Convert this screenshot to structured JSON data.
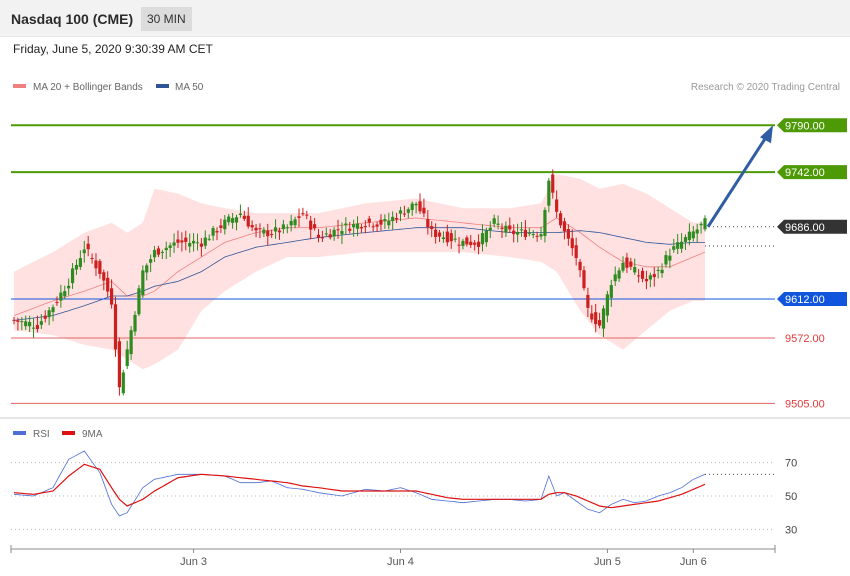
{
  "header": {
    "title": "Nasdaq 100 (CME)",
    "timeframe": "30 MIN"
  },
  "timestamp": "Friday, June 5, 2020 9:30:39 AM CET",
  "legend": {
    "items": [
      {
        "label": "MA 20 + Bollinger Bands",
        "color": "#f08080"
      },
      {
        "label": "MA 50",
        "color": "#2f5597"
      }
    ],
    "credit": "Research © 2020 Trading Central"
  },
  "colors": {
    "up": "#2e8b20",
    "down": "#cc1f1f",
    "bb_fill": "#ffdcdc",
    "ma20": "#f08080",
    "ma50": "#2f5597",
    "resistance": "#4e9a06",
    "pivot": "#1155dd",
    "support": "#e06666",
    "current": "#333333"
  },
  "chart_data": [
    {
      "type": "candlestick",
      "title": "Nasdaq 100 (CME)",
      "ylim": [
        9490,
        9820
      ],
      "levels": [
        {
          "value": 9790.0,
          "label": "9790.00",
          "kind": "resistance"
        },
        {
          "value": 9742.0,
          "label": "9742.00",
          "kind": "resistance"
        },
        {
          "value": 9686.0,
          "label": "9686.00",
          "kind": "current"
        },
        {
          "value": 9612.0,
          "label": "9612.00",
          "kind": "pivot"
        },
        {
          "value": 9572.0,
          "label": "9572.00",
          "kind": "support"
        },
        {
          "value": 9505.0,
          "label": "9505.00",
          "kind": "support"
        }
      ],
      "arrow": {
        "from": 9686,
        "to": 9790,
        "direction": "up"
      },
      "x_ticks": [
        "Jun 3",
        "Jun 4",
        "Jun 5",
        "Jun 6"
      ],
      "close_path": [
        [
          0,
          9590
        ],
        [
          6,
          9585
        ],
        [
          10,
          9605
        ],
        [
          14,
          9630
        ],
        [
          18,
          9665
        ],
        [
          22,
          9640
        ],
        [
          25,
          9610
        ],
        [
          27,
          9520
        ],
        [
          29,
          9560
        ],
        [
          33,
          9640
        ],
        [
          36,
          9660
        ],
        [
          42,
          9670
        ],
        [
          48,
          9670
        ],
        [
          54,
          9690
        ],
        [
          58,
          9700
        ],
        [
          62,
          9680
        ],
        [
          66,
          9680
        ],
        [
          70,
          9685
        ],
        [
          74,
          9700
        ],
        [
          78,
          9675
        ],
        [
          84,
          9685
        ],
        [
          90,
          9690
        ],
        [
          95,
          9690
        ],
        [
          99,
          9700
        ],
        [
          103,
          9710
        ],
        [
          107,
          9680
        ],
        [
          111,
          9675
        ],
        [
          115,
          9670
        ],
        [
          119,
          9670
        ],
        [
          123,
          9690
        ],
        [
          127,
          9680
        ],
        [
          131,
          9680
        ],
        [
          135,
          9680
        ],
        [
          137,
          9735
        ],
        [
          139,
          9700
        ],
        [
          141,
          9680
        ],
        [
          144,
          9655
        ],
        [
          147,
          9600
        ],
        [
          150,
          9585
        ],
        [
          153,
          9630
        ],
        [
          156,
          9650
        ],
        [
          159,
          9640
        ],
        [
          162,
          9630
        ],
        [
          165,
          9640
        ],
        [
          168,
          9660
        ],
        [
          171,
          9670
        ],
        [
          174,
          9680
        ],
        [
          177,
          9690
        ]
      ],
      "bb_upper_path": [
        [
          0,
          9640
        ],
        [
          10,
          9660
        ],
        [
          18,
          9680
        ],
        [
          25,
          9690
        ],
        [
          29,
          9680
        ],
        [
          33,
          9690
        ],
        [
          36,
          9725
        ],
        [
          42,
          9720
        ],
        [
          48,
          9710
        ],
        [
          54,
          9705
        ],
        [
          62,
          9700
        ],
        [
          70,
          9700
        ],
        [
          78,
          9700
        ],
        [
          90,
          9710
        ],
        [
          103,
          9715
        ],
        [
          115,
          9705
        ],
        [
          127,
          9705
        ],
        [
          135,
          9710
        ],
        [
          139,
          9740
        ],
        [
          145,
          9735
        ],
        [
          150,
          9725
        ],
        [
          156,
          9730
        ],
        [
          162,
          9720
        ],
        [
          168,
          9705
        ],
        [
          174,
          9690
        ],
        [
          177,
          9690
        ]
      ],
      "bb_lower_path": [
        [
          0,
          9580
        ],
        [
          10,
          9575
        ],
        [
          18,
          9565
        ],
        [
          25,
          9560
        ],
        [
          29,
          9550
        ],
        [
          33,
          9540
        ],
        [
          36,
          9545
        ],
        [
          42,
          9560
        ],
        [
          48,
          9600
        ],
        [
          54,
          9620
        ],
        [
          62,
          9640
        ],
        [
          70,
          9655
        ],
        [
          78,
          9655
        ],
        [
          90,
          9660
        ],
        [
          103,
          9660
        ],
        [
          115,
          9660
        ],
        [
          127,
          9655
        ],
        [
          135,
          9650
        ],
        [
          139,
          9640
        ],
        [
          145,
          9600
        ],
        [
          150,
          9575
        ],
        [
          156,
          9560
        ],
        [
          162,
          9580
        ],
        [
          168,
          9600
        ],
        [
          174,
          9610
        ],
        [
          177,
          9610
        ]
      ],
      "ma20_path": [
        [
          0,
          9595
        ],
        [
          10,
          9610
        ],
        [
          18,
          9620
        ],
        [
          25,
          9630
        ],
        [
          29,
          9615
        ],
        [
          33,
          9615
        ],
        [
          36,
          9620
        ],
        [
          42,
          9640
        ],
        [
          48,
          9655
        ],
        [
          54,
          9670
        ],
        [
          62,
          9680
        ],
        [
          70,
          9685
        ],
        [
          78,
          9685
        ],
        [
          90,
          9690
        ],
        [
          103,
          9695
        ],
        [
          115,
          9690
        ],
        [
          127,
          9685
        ],
        [
          135,
          9685
        ],
        [
          139,
          9695
        ],
        [
          145,
          9680
        ],
        [
          150,
          9665
        ],
        [
          156,
          9650
        ],
        [
          162,
          9645
        ],
        [
          168,
          9645
        ],
        [
          174,
          9655
        ],
        [
          177,
          9660
        ]
      ],
      "ma50_path": [
        [
          0,
          9590
        ],
        [
          10,
          9595
        ],
        [
          18,
          9605
        ],
        [
          25,
          9615
        ],
        [
          29,
          9615
        ],
        [
          33,
          9620
        ],
        [
          36,
          9625
        ],
        [
          42,
          9630
        ],
        [
          48,
          9640
        ],
        [
          54,
          9655
        ],
        [
          62,
          9665
        ],
        [
          70,
          9670
        ],
        [
          78,
          9675
        ],
        [
          90,
          9680
        ],
        [
          103,
          9685
        ],
        [
          115,
          9685
        ],
        [
          127,
          9680
        ],
        [
          135,
          9680
        ],
        [
          139,
          9680
        ],
        [
          145,
          9682
        ],
        [
          150,
          9680
        ],
        [
          156,
          9675
        ],
        [
          162,
          9670
        ],
        [
          168,
          9668
        ],
        [
          174,
          9670
        ],
        [
          177,
          9670
        ]
      ]
    },
    {
      "type": "line",
      "title": "RSI",
      "ylim": [
        20,
        80
      ],
      "y_ticks": [
        30,
        50,
        70
      ],
      "series": [
        {
          "name": "RSI",
          "color": "#4d6fd6",
          "path": [
            [
              0,
              51
            ],
            [
              5,
              50
            ],
            [
              10,
              55
            ],
            [
              14,
              72
            ],
            [
              18,
              77
            ],
            [
              22,
              64
            ],
            [
              25,
              45
            ],
            [
              27,
              38
            ],
            [
              29,
              40
            ],
            [
              33,
              55
            ],
            [
              36,
              60
            ],
            [
              42,
              63
            ],
            [
              48,
              63
            ],
            [
              54,
              62
            ],
            [
              58,
              58
            ],
            [
              62,
              58
            ],
            [
              66,
              59
            ],
            [
              70,
              55
            ],
            [
              74,
              54
            ],
            [
              78,
              52
            ],
            [
              84,
              50
            ],
            [
              90,
              54
            ],
            [
              95,
              53
            ],
            [
              99,
              55
            ],
            [
              103,
              52
            ],
            [
              107,
              48
            ],
            [
              111,
              47
            ],
            [
              115,
              46
            ],
            [
              119,
              47
            ],
            [
              123,
              48
            ],
            [
              127,
              48
            ],
            [
              131,
              47
            ],
            [
              135,
              48
            ],
            [
              137,
              62
            ],
            [
              139,
              50
            ],
            [
              141,
              52
            ],
            [
              144,
              47
            ],
            [
              147,
              42
            ],
            [
              150,
              40
            ],
            [
              153,
              45
            ],
            [
              156,
              48
            ],
            [
              159,
              46
            ],
            [
              162,
              47
            ],
            [
              165,
              50
            ],
            [
              168,
              52
            ],
            [
              171,
              55
            ],
            [
              174,
              60
            ],
            [
              177,
              63
            ]
          ]
        },
        {
          "name": "9MA",
          "color": "#dd1111",
          "path": [
            [
              0,
              52
            ],
            [
              5,
              51
            ],
            [
              10,
              53
            ],
            [
              14,
              62
            ],
            [
              18,
              69
            ],
            [
              22,
              66
            ],
            [
              25,
              55
            ],
            [
              27,
              48
            ],
            [
              29,
              44
            ],
            [
              33,
              48
            ],
            [
              36,
              53
            ],
            [
              42,
              61
            ],
            [
              48,
              63
            ],
            [
              54,
              62
            ],
            [
              58,
              61
            ],
            [
              62,
              60
            ],
            [
              66,
              59
            ],
            [
              70,
              58
            ],
            [
              74,
              56
            ],
            [
              78,
              55
            ],
            [
              84,
              53
            ],
            [
              90,
              53
            ],
            [
              95,
              53
            ],
            [
              99,
              53
            ],
            [
              103,
              53
            ],
            [
              107,
              51
            ],
            [
              111,
              49
            ],
            [
              115,
              48
            ],
            [
              119,
              48
            ],
            [
              123,
              48
            ],
            [
              127,
              48
            ],
            [
              131,
              48
            ],
            [
              135,
              48
            ],
            [
              137,
              51
            ],
            [
              139,
              52
            ],
            [
              141,
              52
            ],
            [
              144,
              50
            ],
            [
              147,
              47
            ],
            [
              150,
              44
            ],
            [
              153,
              43
            ],
            [
              156,
              44
            ],
            [
              159,
              45
            ],
            [
              162,
              46
            ],
            [
              165,
              47
            ],
            [
              168,
              49
            ],
            [
              171,
              51
            ],
            [
              174,
              54
            ],
            [
              177,
              57
            ]
          ]
        }
      ]
    }
  ]
}
